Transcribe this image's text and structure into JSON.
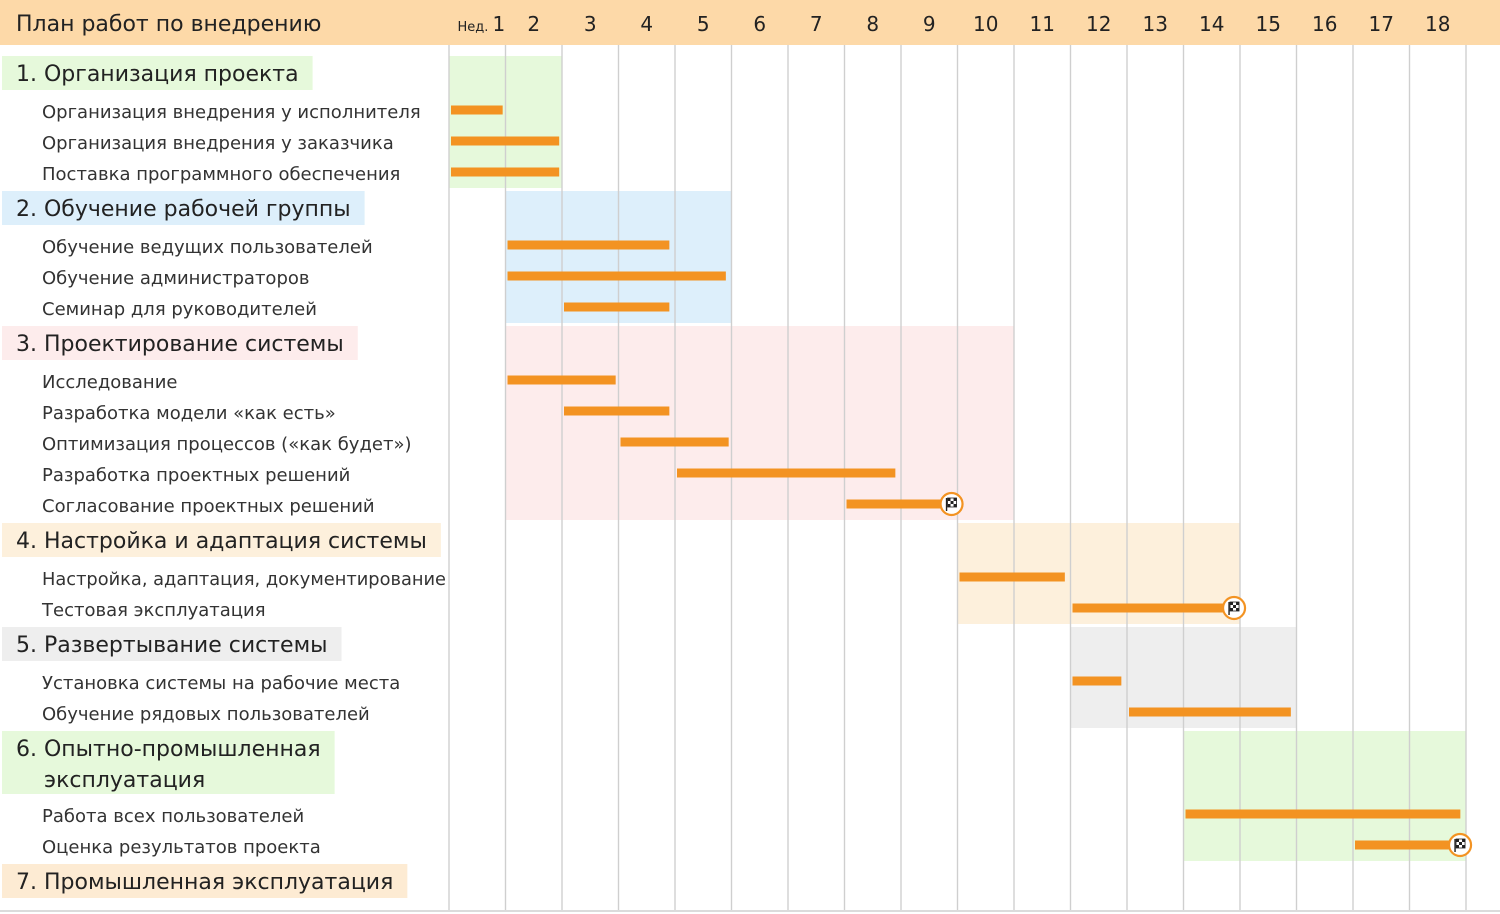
{
  "chart_data": {
    "type": "gantt",
    "title": "План работ по внедрению",
    "week_prefix": "Нед.",
    "weeks": [
      1,
      2,
      3,
      4,
      5,
      6,
      7,
      8,
      9,
      10,
      11,
      12,
      13,
      14,
      15,
      16,
      17,
      18
    ],
    "bar_color": "#f39322",
    "header_color": "#fdd9a8",
    "phases": [
      {
        "label": "1. Организация проекта",
        "color": "#e6f9db",
        "span": [
          1,
          2
        ],
        "tasks": [
          {
            "label": "Организация внедрения у исполнителя",
            "start": 1,
            "end": 1.95
          },
          {
            "label": "Организация внедрения у заказчика",
            "start": 1,
            "end": 2.95
          },
          {
            "label": "Поставка программного обеспечения",
            "start": 1,
            "end": 2.95
          }
        ]
      },
      {
        "label": "2. Обучение рабочей группы",
        "color": "#ddeffb",
        "span": [
          2,
          5
        ],
        "tasks": [
          {
            "label": "Обучение ведущих пользователей",
            "start": 2,
            "end": 4.9
          },
          {
            "label": "Обучение администраторов",
            "start": 2,
            "end": 5.9
          },
          {
            "label": "Семинар для руководителей",
            "start": 3,
            "end": 4.9
          }
        ]
      },
      {
        "label": "3. Проектирование системы",
        "color": "#fdecec",
        "span": [
          2,
          10
        ],
        "tasks": [
          {
            "label": "Исследование",
            "start": 2,
            "end": 3.95
          },
          {
            "label": "Разработка модели «как есть»",
            "start": 3,
            "end": 4.9
          },
          {
            "label": "Оптимизация процессов («как будет»)",
            "start": 4,
            "end": 5.95
          },
          {
            "label": "Разработка проектных решений",
            "start": 5,
            "end": 8.9
          },
          {
            "label": "Согласование проектных решений",
            "start": 8,
            "end": 9.7,
            "milestone": true
          }
        ]
      },
      {
        "label": "4. Настройка и адаптация системы",
        "color": "#fdf0dc",
        "span": [
          10,
          14
        ],
        "tasks": [
          {
            "label": "Настройка, адаптация, документирование",
            "start": 10,
            "end": 11.9
          },
          {
            "label": "Тестовая эксплуатация",
            "start": 12,
            "end": 14.7,
            "milestone": true
          }
        ]
      },
      {
        "label": "5. Развертывание системы",
        "color": "#eeeeee",
        "span": [
          12,
          15
        ],
        "tasks": [
          {
            "label": "Установка системы на рабочие места",
            "start": 12,
            "end": 12.9
          },
          {
            "label": "Обучение рядовых пользователей",
            "start": 13,
            "end": 15.9
          }
        ]
      },
      {
        "label": "6. Опытно-промышленная эксплуатация",
        "label_lines": [
          "6. Опытно-промышленная",
          "эксплуатация"
        ],
        "color": "#e6f9db",
        "span": [
          14,
          18
        ],
        "tasks": [
          {
            "label": "Работа всех пользователей",
            "start": 14,
            "end": 18.9
          },
          {
            "label": "Оценка результатов проекта",
            "start": 17,
            "end": 18.7,
            "milestone": true
          }
        ]
      },
      {
        "label": "7. Промышленная эксплуатация",
        "color": "#fdebd3",
        "span": null,
        "tasks": []
      }
    ]
  }
}
